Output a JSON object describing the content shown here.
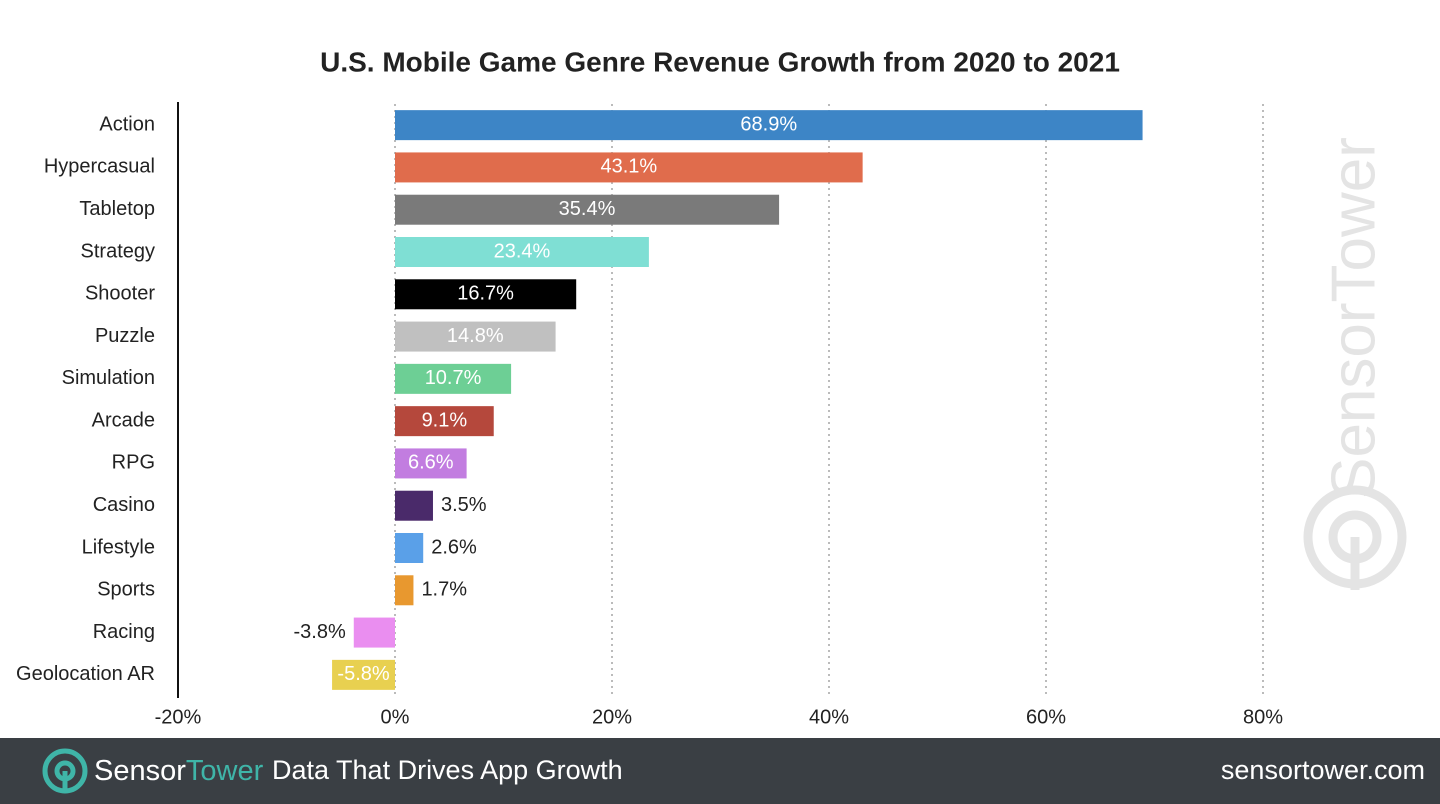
{
  "chart_data": {
    "type": "bar",
    "orientation": "horizontal",
    "title": "U.S. Mobile Game Genre Revenue Growth from 2020 to 2021",
    "categories": [
      "Action",
      "Hypercasual",
      "Tabletop",
      "Strategy",
      "Shooter",
      "Puzzle",
      "Simulation",
      "Arcade",
      "RPG",
      "Casino",
      "Lifestyle",
      "Sports",
      "Racing",
      "Geolocation AR"
    ],
    "values": [
      68.9,
      43.1,
      35.4,
      23.4,
      16.7,
      14.8,
      10.7,
      9.1,
      6.6,
      3.5,
      2.6,
      1.7,
      -3.8,
      -5.8
    ],
    "value_labels": [
      "68.9%",
      "43.1%",
      "35.4%",
      "23.4%",
      "16.7%",
      "14.8%",
      "10.7%",
      "9.1%",
      "6.6%",
      "3.5%",
      "2.6%",
      "1.7%",
      "-3.8%",
      "-5.8%"
    ],
    "colors": [
      "#3d85c6",
      "#e06c4c",
      "#7a7a7a",
      "#7fdfd4",
      "#000000",
      "#c0c0c0",
      "#6dcf95",
      "#b5483c",
      "#c27de0",
      "#4a2a6a",
      "#5aa0e8",
      "#e8982f",
      "#ea8ef0",
      "#e8d050"
    ],
    "xlim": [
      -20,
      80
    ],
    "xticks": [
      {
        "value": -20,
        "label": "-20%"
      },
      {
        "value": 0,
        "label": "0%"
      },
      {
        "value": 20,
        "label": "20%"
      },
      {
        "value": 40,
        "label": "40%"
      },
      {
        "value": 60,
        "label": "60%"
      },
      {
        "value": 80,
        "label": "80%"
      }
    ],
    "grid": true
  },
  "watermark": "SensorTower",
  "footer": {
    "brand": [
      "Sensor",
      "Tower"
    ],
    "tagline": "Data That Drives App Growth",
    "url": "sensortower.com"
  }
}
